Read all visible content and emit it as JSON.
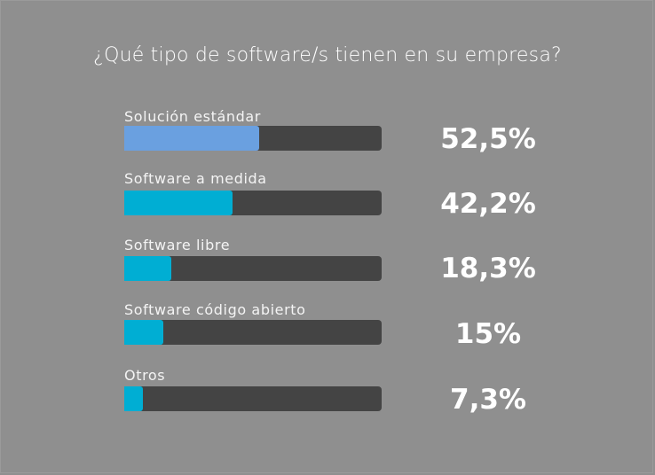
{
  "chart_data": {
    "type": "bar",
    "orientation": "horizontal",
    "title": "¿Qué tipo de software/s tienen en su empresa?",
    "categories": [
      "Solución estándar",
      "Software a medida",
      "Software libre",
      "Software código abierto",
      "Otros"
    ],
    "values": [
      52.5,
      42.2,
      18.3,
      15,
      7.3
    ],
    "value_labels": [
      "52,5%",
      "42,2%",
      "18,3%",
      "15%",
      "7,3%"
    ],
    "xlim": [
      0,
      100
    ],
    "grid": false,
    "legend": null,
    "colors": [
      "#6aa0e0",
      "#00aed3",
      "#00aed3",
      "#00aed3",
      "#00aed3"
    ],
    "track_color": "#444444",
    "background": "#8f8f8f"
  },
  "title": "¿Qué tipo de software/s tienen en su empresa?",
  "rows": [
    {
      "label": "Solución estándar",
      "value": "52,5%"
    },
    {
      "label": "Software a medida",
      "value": "42,2%"
    },
    {
      "label": "Software libre",
      "value": "18,3%"
    },
    {
      "label": "Software código abierto",
      "value": "15%"
    },
    {
      "label": "Otros",
      "value": "7,3%"
    }
  ]
}
